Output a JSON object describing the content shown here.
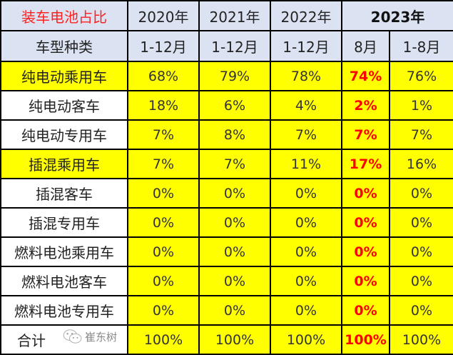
{
  "header": {
    "title": "装车电池占比",
    "years": [
      "2020年",
      "2021年",
      "2022年",
      "2023年"
    ],
    "type_label": "车型种类",
    "periods": [
      "1-12月",
      "1-12月",
      "1-12月",
      "8月",
      "1-8月"
    ]
  },
  "rows": [
    {
      "label": "纯电动乘用车",
      "values": [
        "68%",
        "79%",
        "78%",
        "74%",
        "76%"
      ],
      "highlight": true
    },
    {
      "label": "纯电动客车",
      "values": [
        "18%",
        "6%",
        "4%",
        "2%",
        "1%"
      ],
      "highlight": false
    },
    {
      "label": "纯电动专用车",
      "values": [
        "7%",
        "8%",
        "7%",
        "7%",
        "7%"
      ],
      "highlight": false
    },
    {
      "label": "插混乘用车",
      "values": [
        "7%",
        "7%",
        "11%",
        "17%",
        "16%"
      ],
      "highlight": true
    },
    {
      "label": "插混客车",
      "values": [
        "0%",
        "0%",
        "0%",
        "0%",
        "0%"
      ],
      "highlight": false
    },
    {
      "label": "插混专用车",
      "values": [
        "0%",
        "0%",
        "0%",
        "0%",
        "0%"
      ],
      "highlight": false
    },
    {
      "label": "燃料电池乘用车",
      "values": [
        "0%",
        "0%",
        "0%",
        "0%",
        "0%"
      ],
      "highlight": false
    },
    {
      "label": "燃料电池客车",
      "values": [
        "0%",
        "0%",
        "0%",
        "0%",
        "0%"
      ],
      "highlight": false
    },
    {
      "label": "燃料电池专用车",
      "values": [
        "0%",
        "0%",
        "0%",
        "0%",
        "0%"
      ],
      "highlight": false
    },
    {
      "label": "合计",
      "values": [
        "100%",
        "100%",
        "100%",
        "100%",
        "100%"
      ],
      "highlight": false
    }
  ],
  "colors": {
    "highlight": "#ffff00",
    "header_bg": "#dbe2f1",
    "accent_red": "#ff0000"
  },
  "watermark": {
    "icon": "wechat-icon",
    "text": "崔东树"
  }
}
